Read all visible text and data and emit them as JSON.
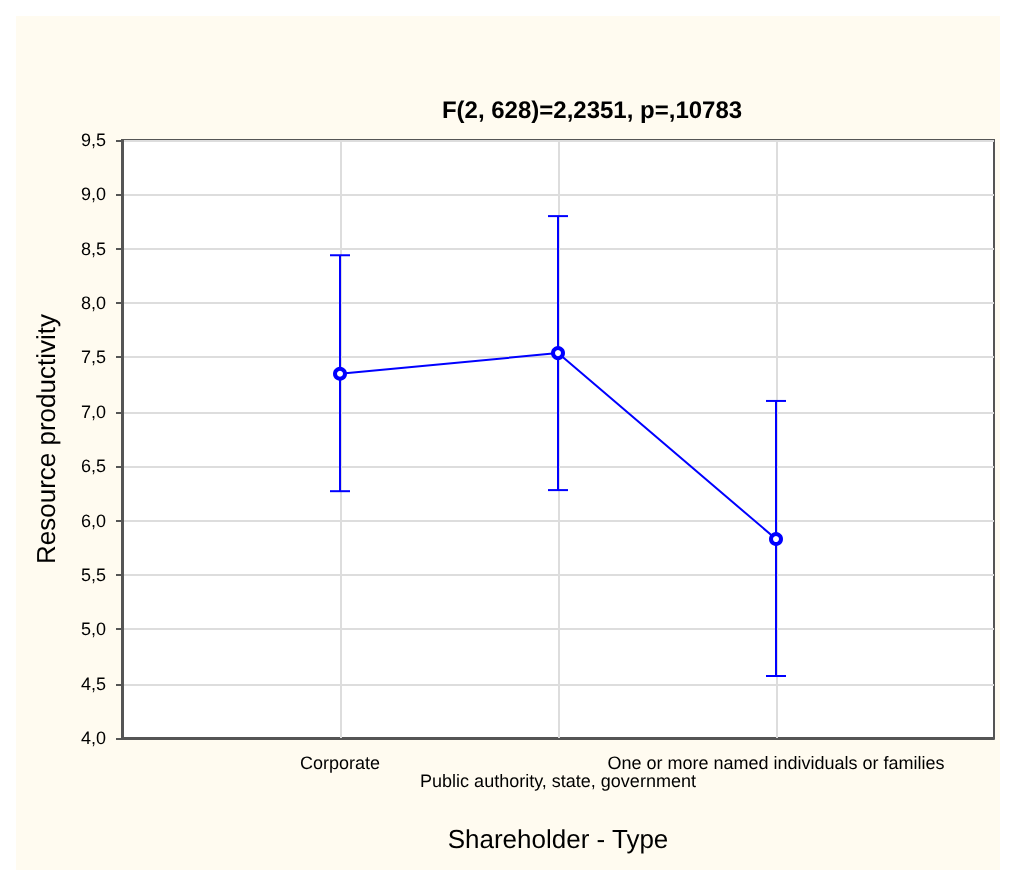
{
  "chart_data": {
    "type": "line",
    "title": "F(2, 628)=2,2351, p=,10783",
    "xlabel": "Shareholder - Type",
    "ylabel": "Resource productivity",
    "categories": [
      "Corporate",
      "Public authority, state, government",
      "One or more named individuals or families"
    ],
    "series": [
      {
        "color": "#0000ff",
        "values": [
          7.35,
          7.54,
          5.83
        ],
        "errors": [
          [
            6.27,
            8.44
          ],
          [
            6.28,
            8.8
          ],
          [
            4.57,
            7.1
          ]
        ]
      }
    ],
    "ylim": [
      4.0,
      9.5
    ],
    "yticks": [
      {
        "value": 4.0,
        "label": "4,0"
      },
      {
        "value": 4.5,
        "label": "4,5"
      },
      {
        "value": 5.0,
        "label": "5,0"
      },
      {
        "value": 5.5,
        "label": "5,5"
      },
      {
        "value": 6.0,
        "label": "6,0"
      },
      {
        "value": 6.5,
        "label": "6,5"
      },
      {
        "value": 7.0,
        "label": "7,0"
      },
      {
        "value": 7.5,
        "label": "7,5"
      },
      {
        "value": 8.0,
        "label": "8,0"
      },
      {
        "value": 8.5,
        "label": "8,5"
      },
      {
        "value": 9.0,
        "label": "9,0"
      },
      {
        "value": 9.5,
        "label": "9,5"
      }
    ],
    "grid": true,
    "marker": "circle",
    "line_style": "solid"
  }
}
